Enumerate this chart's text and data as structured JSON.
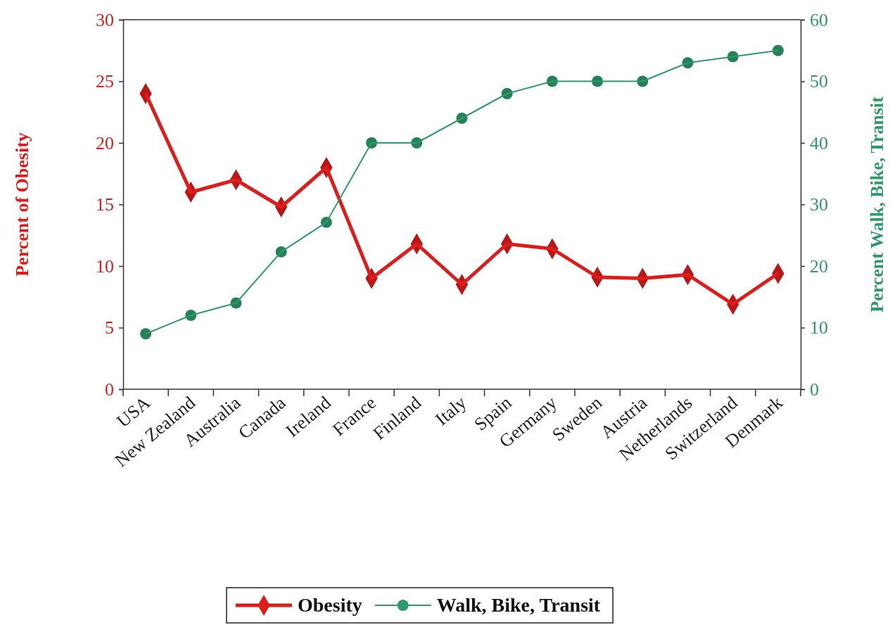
{
  "chart_data": {
    "type": "line",
    "categories": [
      "USA",
      "New Zealand",
      "Australia",
      "Canada",
      "Ireland",
      "France",
      "Finland",
      "Italy",
      "Spain",
      "Germany",
      "Sweden",
      "Austria",
      "Netherlands",
      "Switzerland",
      "Denmark"
    ],
    "ylabel": "Percent of Obesity",
    "y2label": "Percent Walk, Bike, Transit",
    "ylim": [
      0,
      30
    ],
    "yticks": [
      0,
      5,
      10,
      15,
      20,
      25,
      30
    ],
    "y2lim": [
      0,
      60
    ],
    "y2ticks": [
      0,
      10,
      20,
      30,
      40,
      50,
      60
    ],
    "grid": false,
    "legend": "bottom",
    "series": [
      {
        "name": "Obesity",
        "color": "#dd1c1c",
        "marker": "diamond",
        "values": [
          24,
          16,
          17,
          14.8,
          18,
          9,
          11.8,
          8.5,
          11.8,
          11.4,
          9.1,
          9,
          9.3,
          6.9,
          9.4
        ]
      },
      {
        "name": "Walk, Bike, Transit",
        "color": "#2e9a6a",
        "marker": "circle",
        "axis": "y2",
        "values": [
          9,
          12,
          14,
          22.3,
          27.1,
          40,
          40,
          44,
          48,
          50,
          50,
          50,
          53,
          54,
          55
        ]
      }
    ]
  }
}
